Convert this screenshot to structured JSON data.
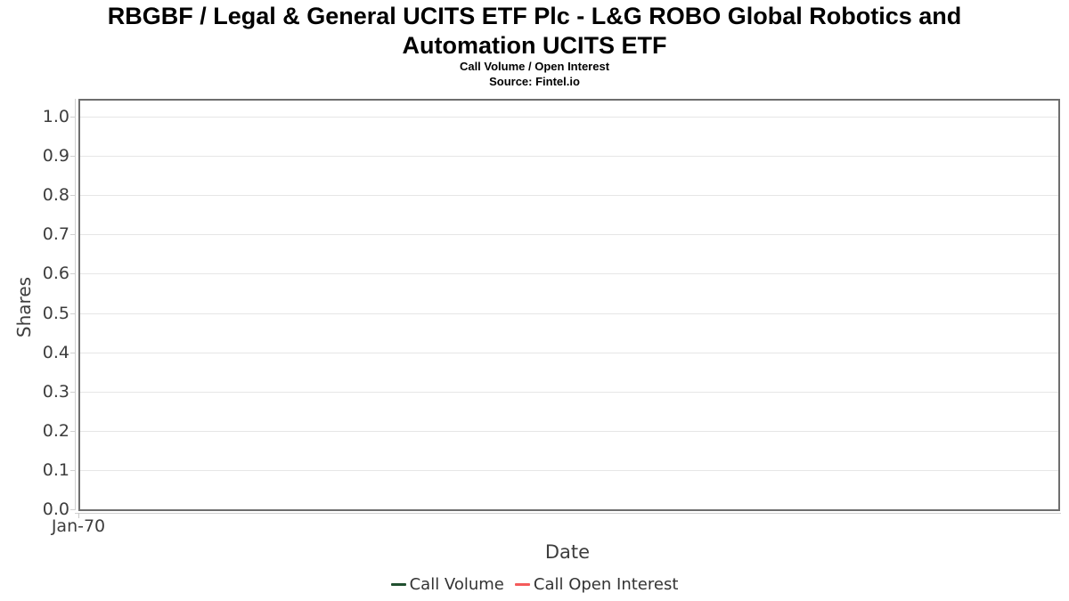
{
  "chart_data": {
    "type": "line",
    "title": "RBGBF / Legal & General UCITS ETF Plc - L&G ROBO Global Robotics and Automation UCITS ETF",
    "subtitle": "Call Volume / Open Interest",
    "source": "Source: Fintel.io",
    "xlabel": "Date",
    "ylabel": "Shares",
    "x_tick_labels": [
      "Jan-70"
    ],
    "y_tick_labels": [
      "0.0",
      "0.1",
      "0.2",
      "0.3",
      "0.4",
      "0.5",
      "0.6",
      "0.7",
      "0.8",
      "0.9",
      "1.0"
    ],
    "ylim": [
      0.0,
      1.045
    ],
    "grid": true,
    "legend_position": "bottom",
    "series": [
      {
        "name": "Call Volume",
        "color": "#21502f",
        "x": [],
        "values": []
      },
      {
        "name": "Call Open Interest",
        "color": "#f45b5b",
        "x": [],
        "values": []
      }
    ],
    "colors": {
      "plot_border": "#6e6e6e",
      "gridline": "#e6e6e6",
      "axis_line": "#d0d0d0",
      "axis_text": "#3d3d3d",
      "legend_text": "#333333",
      "title_text": "#000000"
    }
  }
}
